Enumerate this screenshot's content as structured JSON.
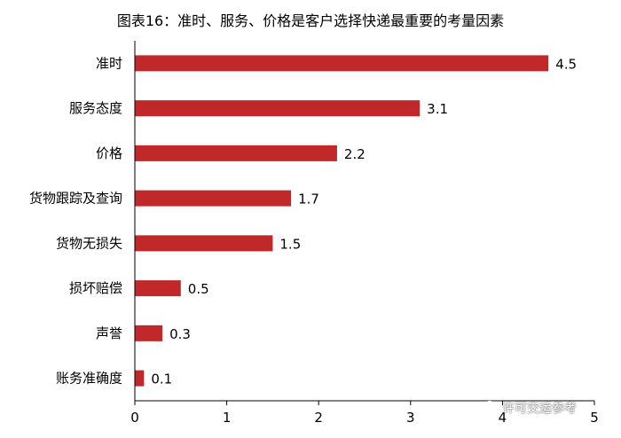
{
  "title": "图表16：准时、服务、价格是客户选择快递最重要的考量因素",
  "watermark": "许可交运参考",
  "colors": {
    "bar": "#c0282a",
    "axis": "#000000"
  },
  "chart_data": {
    "type": "bar",
    "orientation": "horizontal",
    "categories": [
      "准时",
      "服务态度",
      "价格",
      "货物跟踪及查询",
      "货物无损失",
      "损坏赔偿",
      "声誉",
      "账务准确度"
    ],
    "values": [
      4.5,
      3.1,
      2.2,
      1.7,
      1.5,
      0.5,
      0.3,
      0.1
    ],
    "value_labels": [
      "4.5",
      "3.1",
      "2.2",
      "1.7",
      "1.5",
      "0.5",
      "0.3",
      "0.1"
    ],
    "xlim": [
      0,
      5
    ],
    "xticks": [
      "0",
      "1",
      "2",
      "3",
      "4",
      "5"
    ],
    "grid": false,
    "legend": "none"
  }
}
